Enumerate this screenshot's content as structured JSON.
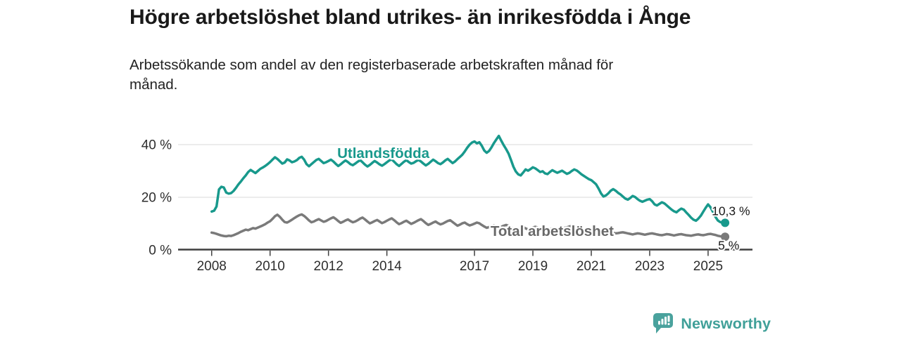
{
  "header": {
    "title": "Högre arbetslöshet bland utrikes- än inrikesfödda i Ånge",
    "subtitle_line1": "Arbetssökande som andel av den registerbaserade arbetskraften månad för",
    "subtitle_line2": "månad."
  },
  "branding": {
    "logo_text": "Newsworthy",
    "logo_icon": "bar-chart-speech-bubble-icon",
    "brand_color": "#40a099"
  },
  "colors": {
    "foreign_born_line": "#18998c",
    "total_line": "#7a7a7a",
    "total_label": "#696969",
    "grid": "#d8d8d8",
    "axis": "#3f3f3f",
    "tick_text": "#2e2e2e",
    "annotation_text": "#1a1a1a",
    "background": "#ffffff"
  },
  "chart_data": {
    "type": "line",
    "title": "Högre arbetslöshet bland utrikes- än inrikesfödda i Ånge",
    "subtitle": "Arbetssökande som andel av den registerbaserade arbetskraften månad för månad.",
    "unit": "%",
    "x_start_year": 2008,
    "x_step_months": 1,
    "xlim": [
      2006.85,
      2026.52
    ],
    "ylim": [
      0,
      45
    ],
    "grid": "horizontal-only",
    "legend": "inline-labels",
    "y_ticks": [
      {
        "value": 0,
        "label": "0 %"
      },
      {
        "value": 20,
        "label": "20 %"
      },
      {
        "value": 40,
        "label": "40 %"
      }
    ],
    "x_ticks": [
      {
        "value": 2008,
        "label": "2008"
      },
      {
        "value": 2010,
        "label": "2010"
      },
      {
        "value": 2012,
        "label": "2012"
      },
      {
        "value": 2014,
        "label": "2014"
      },
      {
        "value": 2017,
        "label": "2017"
      },
      {
        "value": 2019,
        "label": "2019"
      },
      {
        "value": 2021,
        "label": "2021"
      },
      {
        "value": 2023,
        "label": "2023"
      },
      {
        "value": 2025,
        "label": "2025"
      }
    ],
    "series": [
      {
        "id": "utlandsfodda",
        "name": "Utlandsfödda",
        "color": "#18998c",
        "label_pos": {
          "x": 2012.3,
          "y": 34.9
        },
        "end_label": "10,3 %",
        "end_value": 10.3,
        "end_label_offset": {
          "dx": -19,
          "dy": -11
        },
        "values": [
          14.6,
          14.9,
          16.5,
          23.0,
          24.0,
          23.7,
          21.8,
          21.4,
          21.6,
          22.4,
          23.6,
          24.9,
          26.0,
          27.2,
          28.3,
          29.6,
          30.4,
          29.8,
          29.2,
          30.0,
          30.8,
          31.3,
          31.9,
          32.6,
          33.4,
          34.3,
          35.2,
          34.6,
          33.7,
          32.8,
          33.2,
          34.4,
          34.0,
          33.3,
          33.6,
          34.1,
          35.0,
          35.4,
          34.3,
          32.6,
          31.8,
          32.6,
          33.4,
          34.2,
          34.6,
          33.8,
          33.0,
          33.3,
          33.8,
          34.3,
          33.6,
          32.7,
          31.9,
          32.5,
          33.3,
          34.0,
          33.4,
          32.6,
          32.2,
          32.8,
          33.5,
          34.1,
          33.3,
          32.4,
          31.7,
          32.3,
          33.1,
          33.8,
          33.2,
          32.5,
          32.0,
          32.6,
          33.3,
          34.0,
          34.4,
          33.5,
          32.6,
          31.9,
          32.7,
          33.5,
          34.1,
          33.4,
          32.8,
          33.1,
          33.7,
          34.2,
          33.6,
          32.8,
          32.1,
          32.7,
          33.5,
          34.3,
          33.7,
          33.0,
          32.6,
          33.2,
          34.0,
          34.6,
          33.8,
          33.0,
          33.6,
          34.5,
          35.3,
          36.2,
          37.4,
          38.8,
          40.0,
          40.8,
          41.2,
          40.5,
          40.9,
          39.6,
          37.8,
          36.9,
          37.6,
          39.0,
          40.6,
          42.0,
          43.3,
          41.5,
          39.8,
          38.3,
          36.6,
          34.2,
          31.6,
          29.8,
          28.7,
          28.3,
          29.4,
          30.6,
          30.1,
          30.7,
          31.4,
          31.0,
          30.3,
          29.6,
          29.9,
          29.1,
          28.8,
          29.6,
          30.3,
          29.8,
          29.3,
          29.7,
          30.1,
          29.5,
          28.9,
          29.3,
          30.0,
          30.6,
          30.2,
          29.5,
          28.7,
          28.1,
          27.5,
          26.9,
          26.5,
          25.7,
          24.9,
          23.3,
          21.5,
          20.3,
          20.7,
          21.5,
          22.5,
          23.1,
          22.5,
          21.7,
          21.1,
          20.3,
          19.5,
          19.1,
          19.7,
          20.5,
          20.1,
          19.3,
          18.7,
          18.3,
          18.7,
          19.1,
          19.3,
          18.5,
          17.3,
          16.9,
          17.5,
          18.1,
          17.7,
          16.9,
          16.1,
          15.3,
          14.7,
          14.3,
          15.1,
          15.7,
          15.3,
          14.3,
          13.3,
          12.3,
          11.5,
          11.1,
          11.9,
          13.0,
          14.5,
          16.0,
          17.3,
          16.2,
          14.4,
          12.6,
          11.2,
          10.6,
          10.4,
          10.3
        ]
      },
      {
        "id": "total-arbetsloshet",
        "name": "Total arbetslöshet",
        "color": "#7a7a7a",
        "label_color": "#696969",
        "label_pos": {
          "x": 2017.55,
          "y": 5.4
        },
        "end_label": "5 %",
        "end_value": 5.0,
        "end_label_offset": {
          "dx": -10,
          "dy": 18
        },
        "values": [
          6.6,
          6.4,
          6.1,
          5.8,
          5.5,
          5.3,
          5.2,
          5.4,
          5.3,
          5.6,
          6.0,
          6.4,
          6.9,
          7.3,
          7.7,
          7.5,
          7.9,
          8.3,
          8.1,
          8.5,
          8.9,
          9.3,
          9.8,
          10.4,
          10.9,
          11.8,
          12.8,
          13.4,
          12.6,
          11.5,
          10.6,
          10.4,
          10.9,
          11.5,
          12.1,
          12.7,
          13.2,
          13.5,
          12.9,
          12.1,
          11.2,
          10.5,
          10.8,
          11.3,
          11.7,
          11.2,
          10.7,
          11.0,
          11.5,
          12.0,
          12.4,
          11.8,
          11.0,
          10.3,
          10.7,
          11.2,
          11.6,
          11.0,
          10.5,
          10.8,
          11.3,
          11.9,
          12.3,
          11.6,
          10.8,
          10.1,
          10.5,
          11.0,
          11.4,
          10.8,
          10.2,
          10.6,
          11.1,
          11.6,
          12.0,
          11.3,
          10.5,
          9.8,
          10.2,
          10.7,
          11.1,
          10.5,
          9.9,
          10.3,
          10.8,
          11.3,
          11.7,
          11.0,
          10.2,
          9.5,
          9.9,
          10.4,
          10.8,
          10.2,
          9.7,
          10.0,
          10.5,
          11.0,
          11.3,
          10.6,
          9.9,
          9.2,
          9.6,
          10.1,
          10.4,
          9.8,
          9.3,
          9.6,
          10.0,
          10.4,
          10.1,
          9.5,
          8.9,
          8.4,
          8.7,
          9.1,
          9.4,
          8.9,
          8.5,
          8.8,
          9.2,
          9.5,
          9.2,
          8.6,
          8.1,
          7.7,
          8.0,
          8.4,
          8.7,
          8.2,
          7.8,
          8.1,
          8.5,
          8.8,
          8.5,
          8.0,
          7.6,
          7.2,
          7.5,
          7.9,
          8.2,
          7.8,
          7.4,
          7.7,
          8.1,
          8.4,
          8.6,
          8.9,
          9.1,
          8.8,
          8.5,
          8.2,
          7.9,
          7.6,
          7.4,
          7.2,
          7.4,
          7.5,
          7.2,
          6.9,
          6.7,
          6.5,
          6.7,
          6.9,
          6.7,
          6.5,
          6.3,
          6.4,
          6.6,
          6.7,
          6.5,
          6.3,
          6.1,
          5.9,
          6.1,
          6.3,
          6.2,
          6.0,
          5.8,
          6.0,
          6.2,
          6.3,
          6.1,
          5.9,
          5.7,
          5.6,
          5.8,
          6.0,
          5.9,
          5.7,
          5.5,
          5.7,
          5.9,
          6.0,
          5.8,
          5.6,
          5.5,
          5.4,
          5.6,
          5.8,
          5.9,
          5.7,
          5.6,
          5.8,
          6.0,
          6.1,
          5.9,
          5.7,
          5.4,
          5.2,
          5.1,
          5.0
        ]
      }
    ]
  }
}
